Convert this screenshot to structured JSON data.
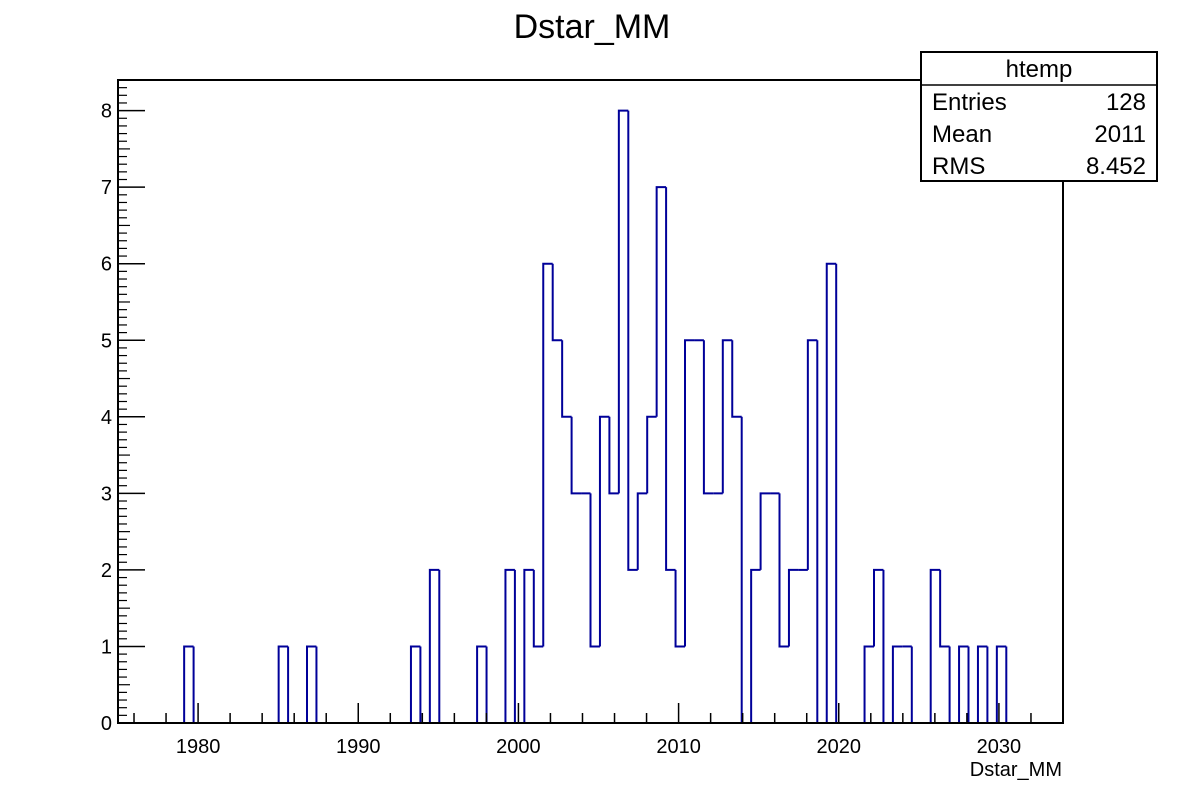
{
  "chart_data": {
    "type": "bar",
    "title": "Dstar_MM",
    "xlabel": "Dstar_MM",
    "ylabel": "",
    "xlim": [
      1975,
      2034
    ],
    "ylim": [
      0,
      8.4
    ],
    "x_ticks": [
      1980,
      1990,
      2000,
      2010,
      2020,
      2030
    ],
    "y_ticks": [
      0,
      1,
      2,
      3,
      4,
      5,
      6,
      7,
      8
    ],
    "x_tick_labels": [
      "1980",
      "1990",
      "2000",
      "2010",
      "2020",
      "2030"
    ],
    "y_tick_labels": [
      "0",
      "1",
      "2",
      "3",
      "4",
      "5",
      "6",
      "7",
      "8"
    ],
    "bins": {
      "start": 1975,
      "width": 0.59,
      "count": 100
    },
    "values": [
      0,
      0,
      0,
      0,
      0,
      0,
      0,
      1,
      0,
      0,
      0,
      0,
      0,
      0,
      0,
      0,
      0,
      1,
      0,
      0,
      1,
      0,
      0,
      0,
      0,
      0,
      0,
      0,
      0,
      0,
      0,
      1,
      0,
      2,
      0,
      0,
      0,
      0,
      1,
      0,
      0,
      2,
      0,
      2,
      1,
      6,
      5,
      4,
      3,
      3,
      1,
      4,
      3,
      8,
      2,
      3,
      4,
      7,
      2,
      1,
      5,
      5,
      3,
      3,
      5,
      4,
      0,
      2,
      3,
      3,
      1,
      2,
      2,
      5,
      0,
      6,
      0,
      0,
      0,
      1,
      2,
      0,
      1,
      1,
      0,
      0,
      2,
      1,
      0,
      1,
      0,
      1,
      0,
      1,
      0,
      0,
      0,
      0,
      0,
      0
    ],
    "line_color": "#000099",
    "grid": false,
    "stats_box": {
      "title": "htemp",
      "rows": [
        {
          "label": "Entries",
          "value": "128"
        },
        {
          "label": "Mean",
          "value": "2011"
        },
        {
          "label": "RMS",
          "value": "8.452"
        }
      ],
      "placement": "top-right"
    }
  }
}
